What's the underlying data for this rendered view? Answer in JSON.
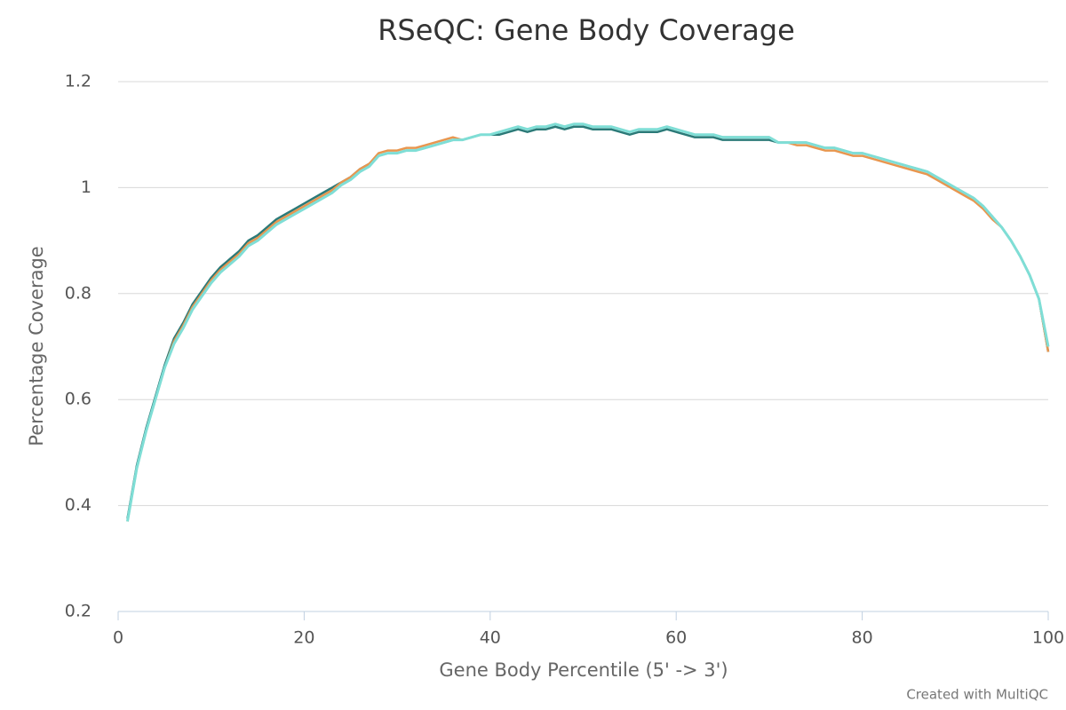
{
  "chart_data": {
    "type": "line",
    "title": "RSeQC: Gene Body Coverage",
    "x_label": "Gene Body Percentile (5' -> 3')",
    "y_label": "Percentage Coverage",
    "credit": "Created with MultiQC",
    "xlim": [
      0,
      100
    ],
    "xticks": [
      0,
      20,
      40,
      60,
      80,
      100
    ],
    "ylim": [
      0.2,
      1.2
    ],
    "yticks": [
      0.2,
      0.4,
      0.6,
      0.8,
      1,
      1.2
    ],
    "grid": true,
    "x": [
      1,
      2,
      3,
      4,
      5,
      6,
      7,
      8,
      9,
      10,
      11,
      12,
      13,
      14,
      15,
      16,
      17,
      18,
      19,
      20,
      21,
      22,
      23,
      24,
      25,
      26,
      27,
      28,
      29,
      30,
      31,
      32,
      33,
      34,
      35,
      36,
      37,
      38,
      39,
      40,
      41,
      42,
      43,
      44,
      45,
      46,
      47,
      48,
      49,
      50,
      51,
      52,
      53,
      54,
      55,
      56,
      57,
      58,
      59,
      60,
      61,
      62,
      63,
      64,
      65,
      66,
      67,
      68,
      69,
      70,
      71,
      72,
      73,
      74,
      75,
      76,
      77,
      78,
      79,
      80,
      81,
      82,
      83,
      84,
      85,
      86,
      87,
      88,
      89,
      90,
      91,
      92,
      93,
      94,
      95,
      96,
      97,
      98,
      99,
      100
    ],
    "series": [
      {
        "color": "#2b7a78",
        "values": [
          0.375,
          0.475,
          0.545,
          0.605,
          0.665,
          0.715,
          0.745,
          0.78,
          0.805,
          0.83,
          0.85,
          0.865,
          0.88,
          0.9,
          0.91,
          0.925,
          0.94,
          0.95,
          0.96,
          0.97,
          0.98,
          0.99,
          1.0,
          1.01,
          1.02,
          1.035,
          1.045,
          1.06,
          1.065,
          1.065,
          1.07,
          1.07,
          1.075,
          1.08,
          1.085,
          1.09,
          1.09,
          1.095,
          1.1,
          1.1,
          1.1,
          1.105,
          1.11,
          1.105,
          1.11,
          1.11,
          1.115,
          1.11,
          1.115,
          1.115,
          1.11,
          1.11,
          1.11,
          1.105,
          1.1,
          1.105,
          1.105,
          1.105,
          1.11,
          1.105,
          1.1,
          1.095,
          1.095,
          1.095,
          1.09,
          1.09,
          1.09,
          1.09,
          1.09,
          1.09,
          1.085,
          1.085,
          1.085,
          1.085,
          1.08,
          1.075,
          1.075,
          1.07,
          1.065,
          1.065,
          1.06,
          1.055,
          1.05,
          1.045,
          1.04,
          1.035,
          1.03,
          1.02,
          1.01,
          1.0,
          0.99,
          0.98,
          0.965,
          0.945,
          0.925,
          0.9,
          0.87,
          0.835,
          0.79,
          0.69
        ]
      },
      {
        "color": "#e8964f",
        "values": [
          0.37,
          0.47,
          0.54,
          0.6,
          0.66,
          0.71,
          0.74,
          0.775,
          0.8,
          0.825,
          0.845,
          0.86,
          0.875,
          0.895,
          0.905,
          0.92,
          0.935,
          0.945,
          0.955,
          0.965,
          0.975,
          0.985,
          0.995,
          1.01,
          1.02,
          1.035,
          1.045,
          1.065,
          1.07,
          1.07,
          1.075,
          1.075,
          1.08,
          1.085,
          1.09,
          1.095,
          1.09,
          1.095,
          1.1,
          1.1,
          1.105,
          1.11,
          1.115,
          1.11,
          1.115,
          1.115,
          1.12,
          1.115,
          1.12,
          1.12,
          1.115,
          1.115,
          1.115,
          1.11,
          1.105,
          1.11,
          1.11,
          1.11,
          1.115,
          1.11,
          1.105,
          1.1,
          1.1,
          1.1,
          1.095,
          1.095,
          1.095,
          1.095,
          1.095,
          1.095,
          1.085,
          1.085,
          1.08,
          1.08,
          1.075,
          1.07,
          1.07,
          1.065,
          1.06,
          1.06,
          1.055,
          1.05,
          1.045,
          1.04,
          1.035,
          1.03,
          1.025,
          1.015,
          1.005,
          0.995,
          0.985,
          0.975,
          0.96,
          0.94,
          0.925,
          0.9,
          0.87,
          0.835,
          0.79,
          0.69
        ]
      },
      {
        "color": "#7fded6",
        "values": [
          0.37,
          0.47,
          0.54,
          0.6,
          0.66,
          0.705,
          0.735,
          0.77,
          0.795,
          0.82,
          0.84,
          0.855,
          0.87,
          0.89,
          0.9,
          0.915,
          0.93,
          0.94,
          0.95,
          0.96,
          0.97,
          0.98,
          0.99,
          1.005,
          1.015,
          1.03,
          1.04,
          1.06,
          1.065,
          1.065,
          1.07,
          1.07,
          1.075,
          1.08,
          1.085,
          1.09,
          1.09,
          1.095,
          1.1,
          1.1,
          1.105,
          1.11,
          1.115,
          1.11,
          1.115,
          1.115,
          1.12,
          1.115,
          1.12,
          1.12,
          1.115,
          1.115,
          1.115,
          1.11,
          1.105,
          1.11,
          1.11,
          1.11,
          1.115,
          1.11,
          1.105,
          1.1,
          1.1,
          1.1,
          1.095,
          1.095,
          1.095,
          1.095,
          1.095,
          1.095,
          1.085,
          1.085,
          1.085,
          1.085,
          1.08,
          1.075,
          1.075,
          1.07,
          1.065,
          1.065,
          1.06,
          1.055,
          1.05,
          1.045,
          1.04,
          1.035,
          1.03,
          1.02,
          1.01,
          1.0,
          0.99,
          0.98,
          0.965,
          0.945,
          0.925,
          0.9,
          0.87,
          0.835,
          0.79,
          0.7
        ]
      }
    ]
  }
}
